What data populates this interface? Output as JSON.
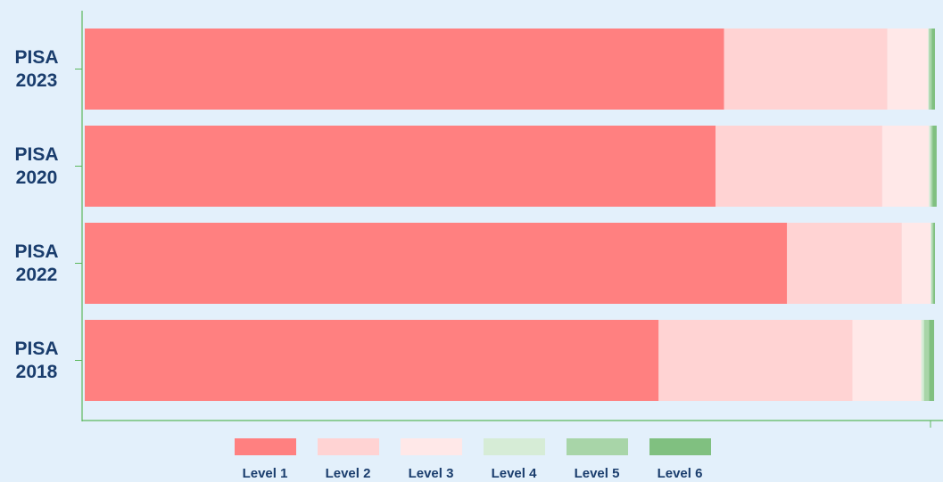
{
  "chart_data": {
    "type": "stacked_bar_horizontal",
    "categories": [
      "PISA 2023",
      "PISA 2020",
      "PISA 2022",
      "PISA 2018"
    ],
    "series": [
      {
        "name": "Level 1",
        "color": "#ff8080",
        "values": [
          75.2,
          74.2,
          82.6,
          67.5
        ]
      },
      {
        "name": "Level 2",
        "color": "#ffd3d3",
        "values": [
          19.2,
          19.6,
          13.5,
          22.8
        ]
      },
      {
        "name": "Level 3",
        "color": "#ffe8e8",
        "values": [
          4.8,
          5.5,
          3.4,
          8.1
        ]
      },
      {
        "name": "Level 4",
        "color": "#d6ecd6",
        "values": [
          0.1,
          0.2,
          0.1,
          0.3
        ]
      },
      {
        "name": "Level 5",
        "color": "#a8d5a8",
        "values": [
          0.3,
          0.2,
          0.2,
          0.6
        ]
      },
      {
        "name": "Level 6",
        "color": "#80c080",
        "values": [
          0.4,
          0.5,
          0.2,
          0.6
        ]
      }
    ],
    "xlim": [
      0,
      100
    ]
  }
}
